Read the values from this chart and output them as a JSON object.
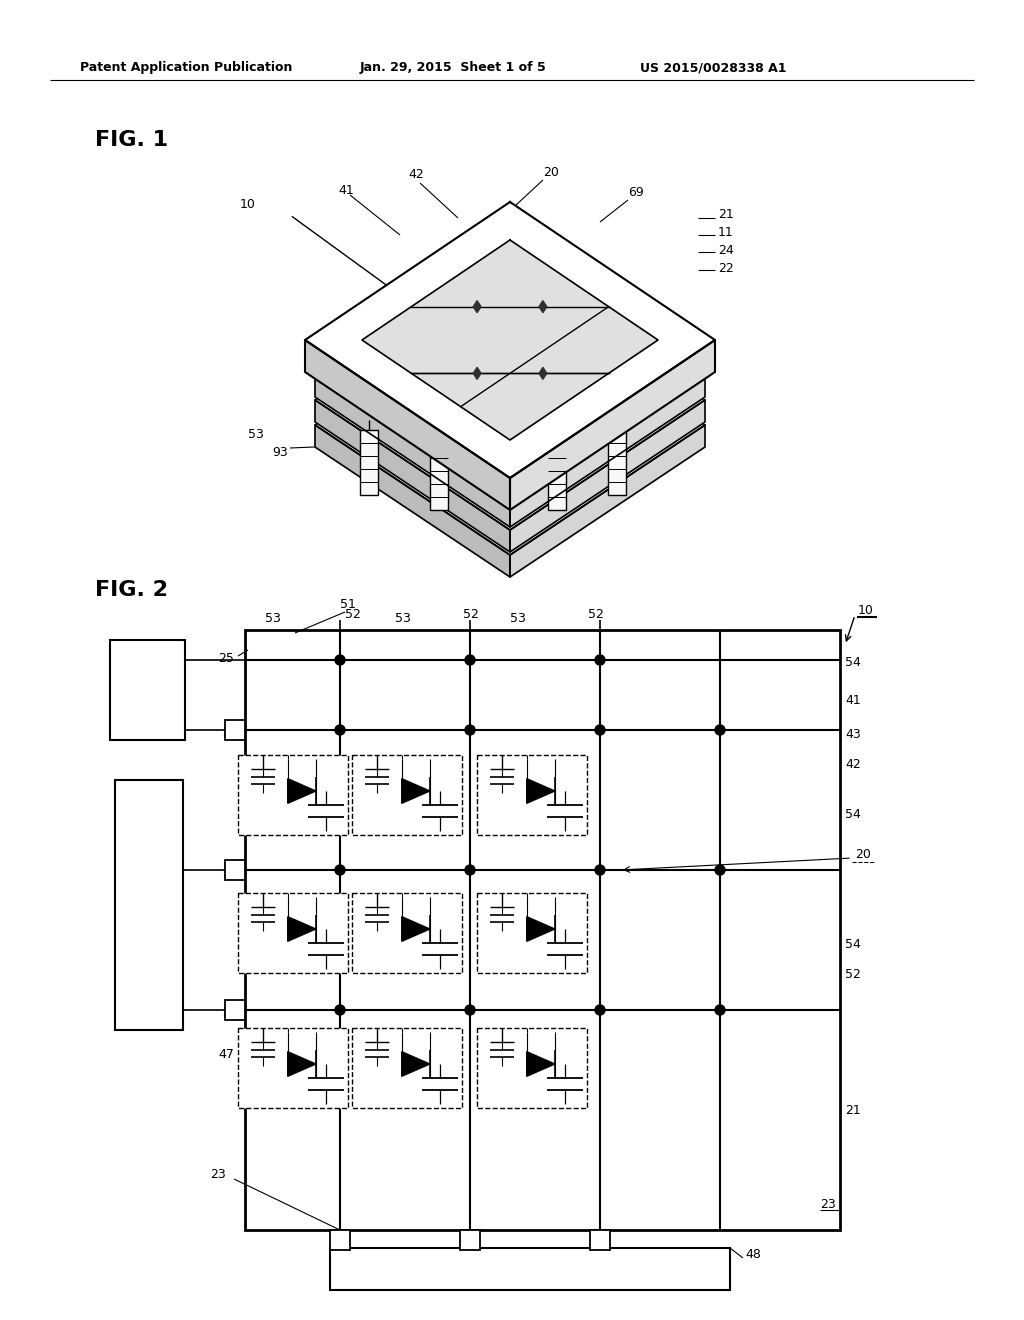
{
  "bg_color": "#ffffff",
  "header_text": "Patent Application Publication",
  "header_date": "Jan. 29, 2015  Sheet 1 of 5",
  "header_patent": "US 2015/0028338 A1",
  "fig1_label": "FIG. 1",
  "fig2_label": "FIG. 2"
}
